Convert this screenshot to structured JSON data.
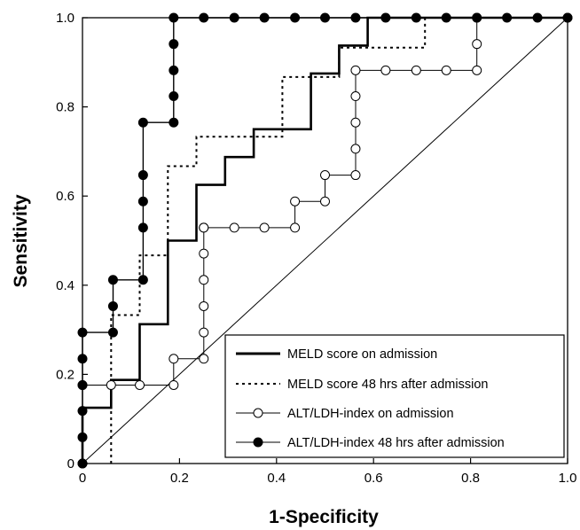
{
  "chart_data": {
    "type": "line",
    "title": "",
    "xlabel": "1-Specificity",
    "ylabel": "Sensitivity",
    "xlim": [
      0,
      1
    ],
    "ylim": [
      0,
      1
    ],
    "x_ticks": [
      0,
      0.2,
      0.4,
      0.6,
      0.8,
      1.0
    ],
    "x_tick_labels": [
      "0",
      "0.2",
      "0.4",
      "0.6",
      "0.8",
      "1.0"
    ],
    "y_ticks": [
      0,
      0.2,
      0.4,
      0.6,
      0.8,
      1.0
    ],
    "y_tick_labels": [
      "0",
      "0.2",
      "0.4",
      "0.6",
      "0.8",
      "1.0"
    ],
    "grid": false,
    "legend_position": "bottom-right",
    "reference_line": {
      "x": [
        0,
        1
      ],
      "y": [
        0,
        1
      ]
    },
    "series": [
      {
        "name": "MELD score on admission",
        "style": "solid-thick",
        "color": "#000000",
        "x": [
          0,
          0,
          0.059,
          0.059,
          0.118,
          0.118,
          0.176,
          0.176,
          0.235,
          0.235,
          0.294,
          0.294,
          0.353,
          0.353,
          0.471,
          0.471,
          0.529,
          0.529,
          0.588,
          0.588,
          1.0
        ],
        "y": [
          0,
          0.125,
          0.125,
          0.1875,
          0.1875,
          0.3125,
          0.3125,
          0.5,
          0.5,
          0.625,
          0.625,
          0.6875,
          0.6875,
          0.75,
          0.75,
          0.875,
          0.875,
          0.9375,
          0.9375,
          1.0,
          1.0
        ]
      },
      {
        "name": "MELD score 48 hrs after admission",
        "style": "dotted",
        "color": "#000000",
        "x": [
          0.059,
          0.059,
          0.118,
          0.118,
          0.176,
          0.176,
          0.235,
          0.235,
          0.412,
          0.412,
          0.529,
          0.529,
          0.706,
          0.706,
          1.0
        ],
        "y": [
          0,
          0.333,
          0.333,
          0.467,
          0.467,
          0.667,
          0.667,
          0.733,
          0.733,
          0.867,
          0.867,
          0.933,
          0.933,
          1.0,
          1.0
        ]
      },
      {
        "name": "ALT/LDH-index on admission",
        "style": "open-markers",
        "color": "#000000",
        "x": [
          0,
          0,
          0.059,
          0.118,
          0.188,
          0.188,
          0.25,
          0.25,
          0.25,
          0.25,
          0.25,
          0.25,
          0.25,
          0.313,
          0.375,
          0.438,
          0.438,
          0.5,
          0.5,
          0.563,
          0.563,
          0.563,
          0.563,
          0.563,
          0.625,
          0.688,
          0.75,
          0.813,
          0.813,
          0.813,
          1.0
        ],
        "y": [
          0,
          0.176,
          0.176,
          0.176,
          0.176,
          0.235,
          0.235,
          0.294,
          0.353,
          0.412,
          0.471,
          0.529,
          0.529,
          0.529,
          0.529,
          0.529,
          0.588,
          0.588,
          0.647,
          0.647,
          0.706,
          0.765,
          0.824,
          0.882,
          0.882,
          0.882,
          0.882,
          0.882,
          0.941,
          1.0,
          1.0
        ]
      },
      {
        "name": "ALT/LDH-index 48 hrs after admission",
        "style": "filled-markers",
        "color": "#000000",
        "x": [
          0,
          0,
          0,
          0,
          0,
          0,
          0.063,
          0.063,
          0.063,
          0.125,
          0.125,
          0.125,
          0.125,
          0.125,
          0.188,
          0.188,
          0.188,
          0.188,
          0.188,
          0.25,
          0.313,
          0.375,
          0.438,
          0.5,
          0.563,
          0.625,
          0.688,
          0.75,
          0.813,
          0.875,
          0.938,
          1.0
        ],
        "y": [
          0,
          0.059,
          0.118,
          0.176,
          0.235,
          0.294,
          0.294,
          0.353,
          0.412,
          0.412,
          0.529,
          0.588,
          0.647,
          0.765,
          0.765,
          0.824,
          0.882,
          0.941,
          1.0,
          1.0,
          1.0,
          1.0,
          1.0,
          1.0,
          1.0,
          1.0,
          1.0,
          1.0,
          1.0,
          1.0,
          1.0,
          1.0
        ]
      }
    ]
  }
}
